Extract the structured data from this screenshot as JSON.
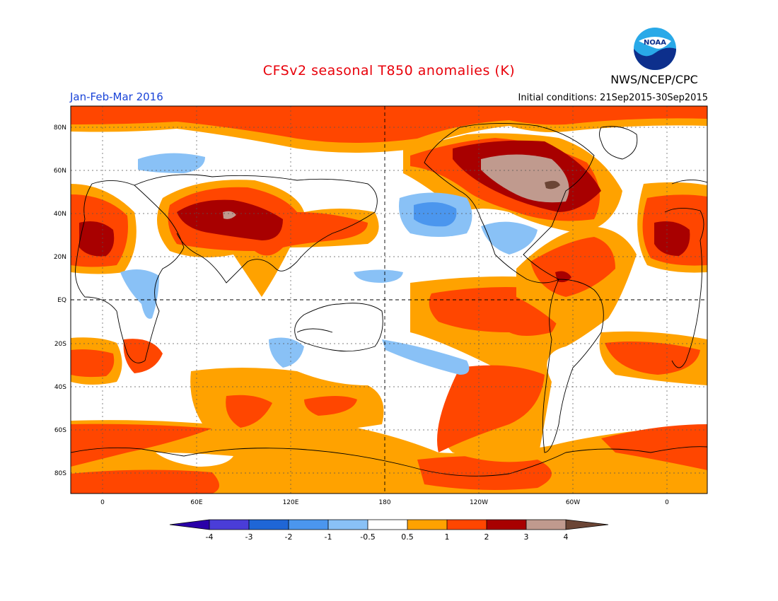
{
  "header": {
    "title": "CFSv2 seasonal T850 anomalies (K)",
    "period": "Jan-Feb-Mar 2016",
    "initial_conditions": "Initial conditions: 21Sep2015-30Sep2015",
    "agency": "NWS/NCEP/CPC",
    "logo_text": "NOAA"
  },
  "map": {
    "lat_labels": [
      "80N",
      "60N",
      "40N",
      "20N",
      "EQ",
      "20S",
      "40S",
      "60S",
      "80S"
    ],
    "lon_labels": [
      "0",
      "60E",
      "120E",
      "180",
      "120W",
      "60W",
      "0"
    ]
  },
  "colorbar": {
    "tick_labels": [
      "-4",
      "-3",
      "-2",
      "-1",
      "-0.5",
      "0.5",
      "1",
      "2",
      "3",
      "4"
    ],
    "colors": [
      "#2a00a8",
      "#4a3dd8",
      "#1f66d6",
      "#4b96ee",
      "#89c1f6",
      "#ffffff",
      "#ffa200",
      "#ff4600",
      "#a80000",
      "#c09a8e",
      "#6b4535"
    ]
  },
  "colors": {
    "title": "#e8000a",
    "period": "#1a44d8",
    "ocean_fill": "#ffffff",
    "warm_05_1": "#ffa200",
    "warm_1_2": "#ff4600",
    "warm_2_3": "#a80000",
    "warm_3_4": "#c09a8e",
    "cool_05_1": "#89c1f6",
    "cool_1_2": "#4b96ee"
  }
}
